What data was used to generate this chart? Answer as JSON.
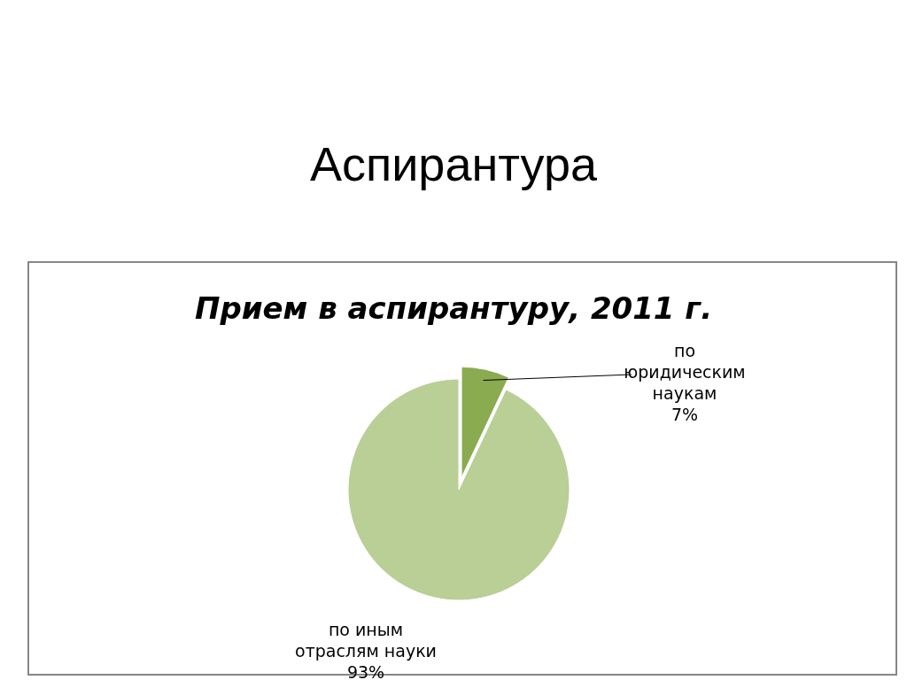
{
  "chart_data": {
    "type": "pie",
    "title": "Аспирантура",
    "subtitle": "Прием в аспирантуру, 2011 г.",
    "categories": [
      "по юридическим наукам",
      "по иным отраслям науки"
    ],
    "values": [
      7,
      93
    ],
    "value_labels": [
      "7%",
      "93%"
    ],
    "colors": [
      "#8aab4f",
      "#b9cf96"
    ]
  }
}
